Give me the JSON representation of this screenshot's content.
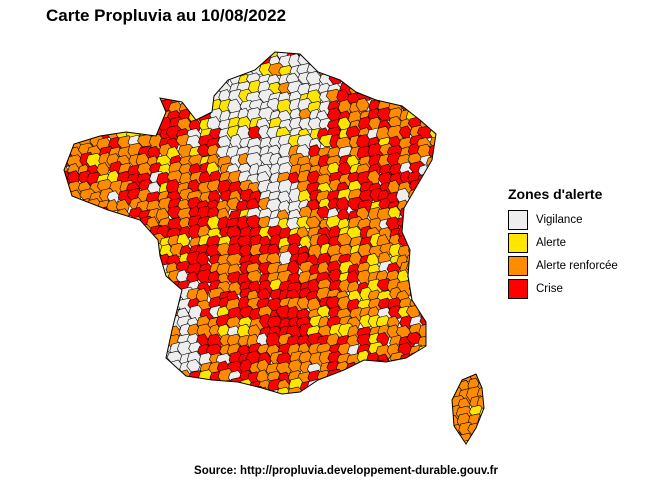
{
  "title": "Carte Propluvia au 10/08/2022",
  "legend": {
    "title": "Zones d'alerte",
    "items": [
      {
        "label": "Vigilance",
        "color": "#EEEEEE"
      },
      {
        "label": "Alerte",
        "color": "#FFE600"
      },
      {
        "label": "Alerte renforcée",
        "color": "#FF8C00"
      },
      {
        "label": "Crise",
        "color": "#FF0000"
      }
    ]
  },
  "source": "Source: http://propluvia.developpement-durable.gouv.fr"
}
